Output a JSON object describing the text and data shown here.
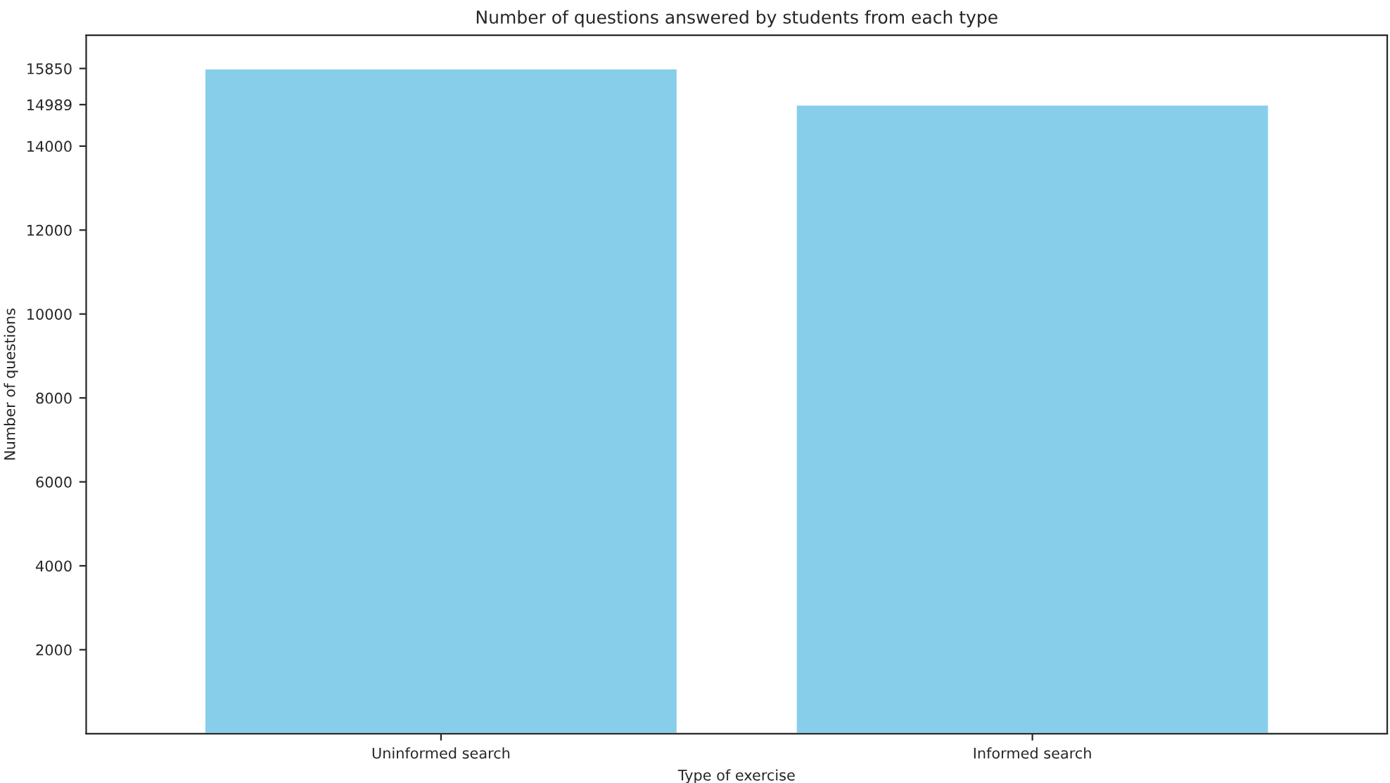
{
  "chart_data": {
    "type": "bar",
    "title": "Number of questions answered by students from each type",
    "xlabel": "Type of exercise",
    "ylabel": "Number of questions",
    "categories": [
      "Uninformed search",
      "Informed search"
    ],
    "values": [
      15850,
      14989
    ],
    "color": "#87ceeb",
    "ylim": [
      0,
      16642.5
    ],
    "yticks": [
      2000,
      4000,
      6000,
      8000,
      10000,
      12000,
      14000,
      14989,
      15850
    ],
    "grid": false,
    "legend": false
  }
}
